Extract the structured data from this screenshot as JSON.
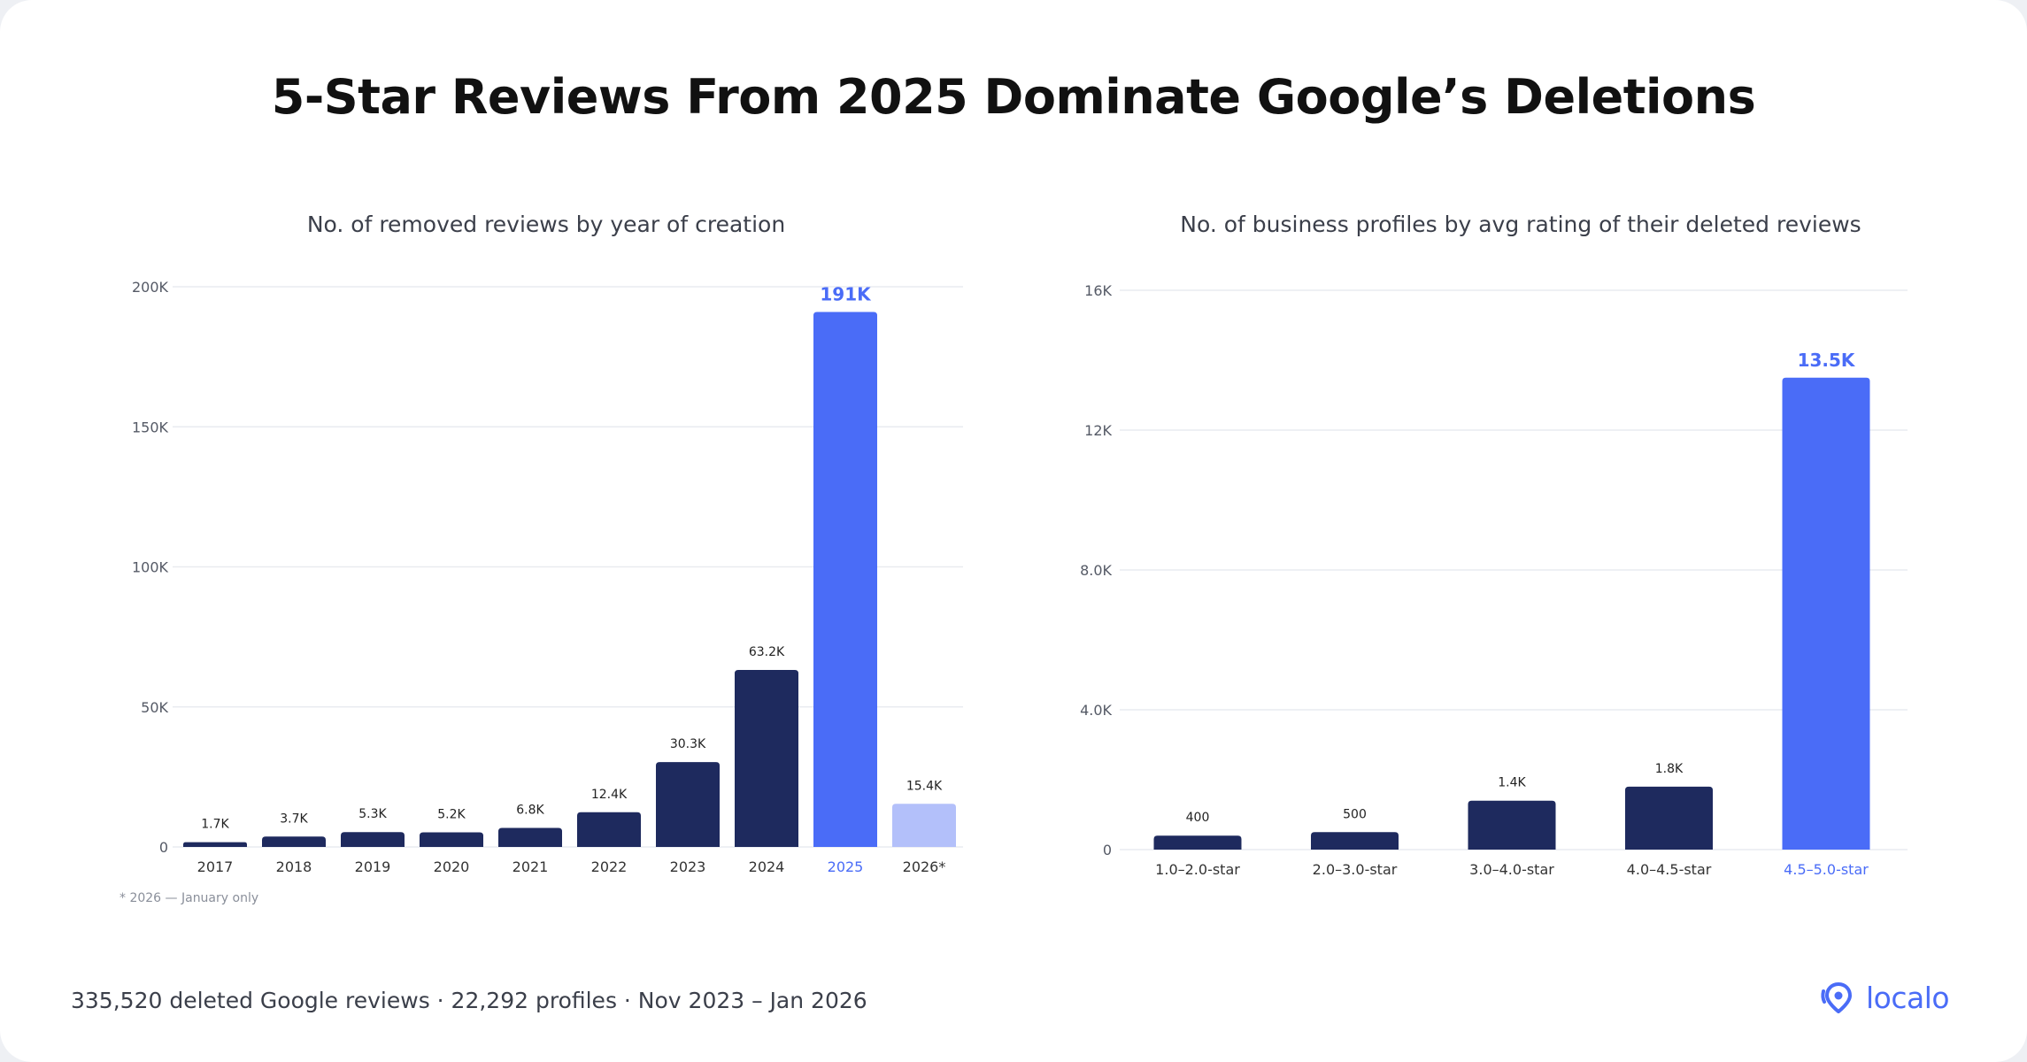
{
  "title": "5-Star Reviews From 2025 Dominate Google’s Deletions",
  "footer": {
    "stats": "335,520 deleted Google reviews · 22,292 profiles · Nov 2023 – Jan 2026",
    "logo_text": "localo",
    "logo_icon": "location-pin-icon"
  },
  "colors": {
    "navy": "#1e2a5e",
    "accent": "#4a6cf7",
    "light": "#b3c0fa"
  },
  "chart_data": [
    {
      "type": "bar",
      "title": "No. of removed reviews by year of creation",
      "categories": [
        "2017",
        "2018",
        "2019",
        "2020",
        "2021",
        "2022",
        "2023",
        "2024",
        "2025",
        "2026*"
      ],
      "values": [
        1700,
        3700,
        5300,
        5200,
        6800,
        12400,
        30300,
        63200,
        191000,
        15400
      ],
      "value_labels": [
        "1.7K",
        "3.7K",
        "5.3K",
        "5.2K",
        "6.8K",
        "12.4K",
        "30.3K",
        "63.2K",
        "191K",
        "15.4K"
      ],
      "highlight": [
        8
      ],
      "partial": [
        9
      ],
      "ylim": [
        0,
        200000
      ],
      "yticks": [
        0,
        50000,
        100000,
        150000,
        200000
      ],
      "ytick_labels": [
        "0",
        "50K",
        "100K",
        "150K",
        "200K"
      ],
      "grid": true,
      "note": "* 2026 — January only"
    },
    {
      "type": "bar",
      "title": "No. of business profiles by avg rating of their deleted reviews",
      "categories": [
        "1.0–2.0-star",
        "2.0–3.0-star",
        "3.0–4.0-star",
        "4.0–4.5-star",
        "4.5–5.0-star"
      ],
      "values": [
        400,
        500,
        1400,
        1800,
        13500
      ],
      "value_labels": [
        "400",
        "500",
        "1.4K",
        "1.8K",
        "13.5K"
      ],
      "highlight": [
        4
      ],
      "partial": [],
      "ylim": [
        0,
        16000
      ],
      "yticks": [
        0,
        4000,
        8000,
        12000,
        16000
      ],
      "ytick_labels": [
        "0",
        "4.0K",
        "8.0K",
        "12K",
        "16K"
      ],
      "grid": true,
      "note": ""
    }
  ]
}
